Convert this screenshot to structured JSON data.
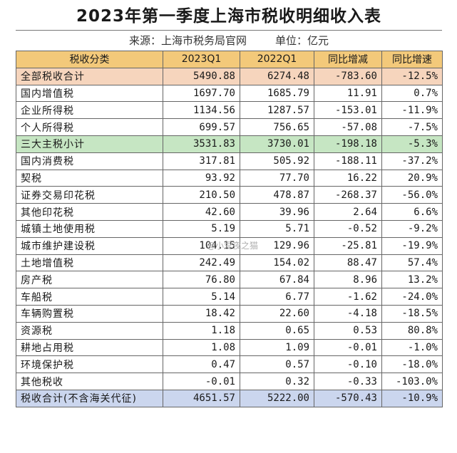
{
  "title": "2023年第一季度上海市税收明细收入表",
  "source": "来源：上海市税务局官网",
  "unit": "单位：亿元",
  "watermark": "@小爱夜之猫",
  "columns": [
    "税收分类",
    "2023Q1",
    "2022Q1",
    "同比增减",
    "同比增速"
  ],
  "rows": [
    {
      "name": "全部税收合计",
      "v2023": "5490.88",
      "v2022": "6274.48",
      "change": "-783.60",
      "rate": "-12.5%",
      "highlight": "orange"
    },
    {
      "name": "国内增值税",
      "v2023": "1697.70",
      "v2022": "1685.79",
      "change": "11.91",
      "rate": "0.7%",
      "highlight": ""
    },
    {
      "name": "企业所得税",
      "v2023": "1134.56",
      "v2022": "1287.57",
      "change": "-153.01",
      "rate": "-11.9%",
      "highlight": ""
    },
    {
      "name": "个人所得税",
      "v2023": "699.57",
      "v2022": "756.65",
      "change": "-57.08",
      "rate": "-7.5%",
      "highlight": ""
    },
    {
      "name": "三大主税小计",
      "v2023": "3531.83",
      "v2022": "3730.01",
      "change": "-198.18",
      "rate": "-5.3%",
      "highlight": "green"
    },
    {
      "name": "国内消费税",
      "v2023": "317.81",
      "v2022": "505.92",
      "change": "-188.11",
      "rate": "-37.2%",
      "highlight": ""
    },
    {
      "name": "契税",
      "v2023": "93.92",
      "v2022": "77.70",
      "change": "16.22",
      "rate": "20.9%",
      "highlight": ""
    },
    {
      "name": "证券交易印花税",
      "v2023": "210.50",
      "v2022": "478.87",
      "change": "-268.37",
      "rate": "-56.0%",
      "highlight": ""
    },
    {
      "name": "其他印花税",
      "v2023": "42.60",
      "v2022": "39.96",
      "change": "2.64",
      "rate": "6.6%",
      "highlight": ""
    },
    {
      "name": "城镇土地使用税",
      "v2023": "5.19",
      "v2022": "5.71",
      "change": "-0.52",
      "rate": "-9.2%",
      "highlight": ""
    },
    {
      "name": "城市维护建设税",
      "v2023": "104.15",
      "v2022": "129.96",
      "change": "-25.81",
      "rate": "-19.9%",
      "highlight": ""
    },
    {
      "name": "土地增值税",
      "v2023": "242.49",
      "v2022": "154.02",
      "change": "88.47",
      "rate": "57.4%",
      "highlight": ""
    },
    {
      "name": "房产税",
      "v2023": "76.80",
      "v2022": "67.84",
      "change": "8.96",
      "rate": "13.2%",
      "highlight": ""
    },
    {
      "name": "车船税",
      "v2023": "5.14",
      "v2022": "6.77",
      "change": "-1.62",
      "rate": "-24.0%",
      "highlight": ""
    },
    {
      "name": "车辆购置税",
      "v2023": "18.42",
      "v2022": "22.60",
      "change": "-4.18",
      "rate": "-18.5%",
      "highlight": ""
    },
    {
      "name": "资源税",
      "v2023": "1.18",
      "v2022": "0.65",
      "change": "0.53",
      "rate": "80.8%",
      "highlight": ""
    },
    {
      "name": "耕地占用税",
      "v2023": "1.08",
      "v2022": "1.09",
      "change": "-0.01",
      "rate": "-1.0%",
      "highlight": ""
    },
    {
      "name": "环境保护税",
      "v2023": "0.47",
      "v2022": "0.57",
      "change": "-0.10",
      "rate": "-18.0%",
      "highlight": ""
    },
    {
      "name": "其他税收",
      "v2023": "-0.01",
      "v2022": "0.32",
      "change": "-0.33",
      "rate": "-103.0%",
      "highlight": ""
    },
    {
      "name": "税收合计(不含海关代征)",
      "v2023": "4651.57",
      "v2022": "5222.00",
      "change": "-570.43",
      "rate": "-10.9%",
      "highlight": "blue"
    }
  ]
}
